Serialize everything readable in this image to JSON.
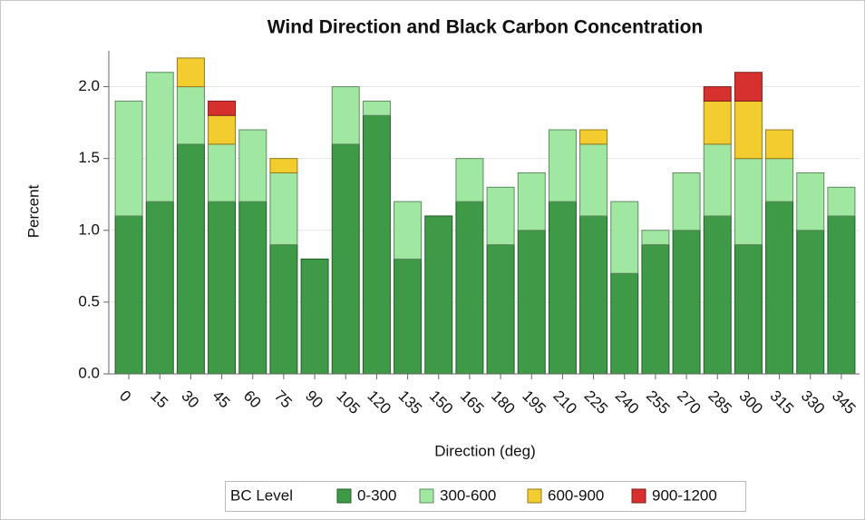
{
  "chart_data": {
    "type": "stacked_bar",
    "title": "Wind Direction and Black Carbon Concentration",
    "x_label": "Direction (deg)",
    "y_label": "Percent",
    "legend_title": "BC Level",
    "categories": [
      "0",
      "15",
      "30",
      "45",
      "60",
      "75",
      "90",
      "105",
      "120",
      "135",
      "150",
      "165",
      "180",
      "195",
      "210",
      "225",
      "240",
      "255",
      "270",
      "285",
      "300",
      "315",
      "330",
      "345"
    ],
    "series": [
      {
        "name": "0-300",
        "color": "#3e9a47",
        "values": [
          1.1,
          1.2,
          1.6,
          1.2,
          1.2,
          0.9,
          0.8,
          1.6,
          1.8,
          0.8,
          1.1,
          1.2,
          0.9,
          1.0,
          1.2,
          1.1,
          0.7,
          0.9,
          1.0,
          1.1,
          0.9,
          1.2,
          1.0,
          1.1
        ]
      },
      {
        "name": "300-600",
        "color": "#a0e8a2",
        "values": [
          0.8,
          0.9,
          0.4,
          0.4,
          0.5,
          0.5,
          0,
          0.4,
          0.1,
          0.4,
          0,
          0.3,
          0.4,
          0.4,
          0.5,
          0.5,
          0.5,
          0.1,
          0.4,
          0.5,
          0.6,
          0.3,
          0.4,
          0.2
        ]
      },
      {
        "name": "600-900",
        "color": "#f3cd2f",
        "values": [
          0,
          0,
          0.2,
          0.2,
          0,
          0.1,
          0,
          0,
          0,
          0,
          0,
          0,
          0,
          0,
          0,
          0.1,
          0,
          0,
          0,
          0.3,
          0.4,
          0.2,
          0,
          0
        ]
      },
      {
        "name": "900-1200",
        "color": "#d6302f",
        "values": [
          0,
          0,
          0,
          0.1,
          0,
          0,
          0,
          0,
          0,
          0,
          0,
          0,
          0,
          0,
          0,
          0,
          0,
          0,
          0,
          0.1,
          0.2,
          0,
          0,
          0
        ]
      }
    ],
    "ylim": [
      0,
      2.25
    ],
    "yticks": [
      {
        "value": 0,
        "label": "0.0"
      },
      0.5,
      {
        "value": 1,
        "label": "1.0"
      },
      1.5,
      {
        "value": 2,
        "label": "2.0"
      }
    ],
    "grid": true,
    "legend": "bottom"
  }
}
